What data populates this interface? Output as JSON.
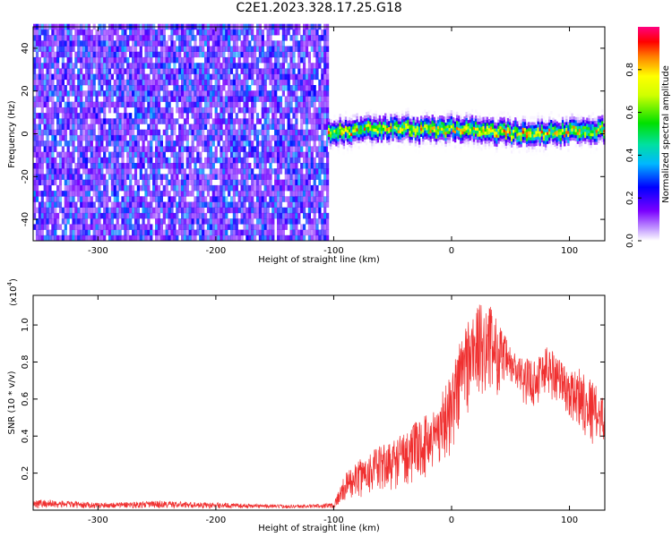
{
  "title": "C2E1.2023.328.17.25.G18",
  "chart_data": [
    {
      "type": "heatmap",
      "xlabel": "Height of straight line (km)",
      "ylabel": "Frequency (Hz)",
      "xlim": [
        -355,
        130
      ],
      "ylim": [
        -50,
        50
      ],
      "xticks": [
        -300,
        -200,
        -100,
        0,
        100
      ],
      "xtick_labels": [
        "-300",
        "-200",
        "-100",
        "0",
        "100"
      ],
      "yticks": [
        -40,
        -20,
        0,
        20,
        40
      ],
      "ytick_labels": [
        "-40",
        "-20",
        "0",
        "20",
        "40"
      ],
      "colorbar": {
        "label": "Normalized spectral amplitude",
        "range": [
          0,
          1
        ],
        "ticks": [
          0.0,
          0.2,
          0.4,
          0.6,
          0.8
        ],
        "tick_labels": [
          "0.0",
          "0.2",
          "0.4",
          "0.6",
          "0.8"
        ],
        "colormap": "rainbow"
      },
      "regions": [
        {
          "x": [
            -355,
            -105
          ],
          "description_values": {
            "freq_range": [
              -50,
              50
            ],
            "amplitude_range": [
              0.1,
              0.35
            ]
          }
        },
        {
          "x": [
            -105,
            130
          ],
          "description_values": {
            "center_freq": [
              [
                -105,
                0
              ],
              [
                -50,
                2
              ],
              [
                -20,
                1
              ],
              [
                0,
                2
              ],
              [
                40,
                0
              ],
              [
                80,
                0
              ],
              [
                130,
                1
              ]
            ],
            "peak_amplitude": [
              0.4,
              0.95
            ]
          }
        }
      ],
      "grid": false
    },
    {
      "type": "line",
      "xlabel": "Height of straight line (km)",
      "ylabel": "SNR (10 * v/v)",
      "scale_label": "(x10",
      "scale_exp": "4",
      "scale_close": ")",
      "xlim": [
        -355,
        130
      ],
      "ylim": [
        0,
        1.16
      ],
      "xticks": [
        -300,
        -200,
        -100,
        0,
        100
      ],
      "xtick_labels": [
        "-300",
        "-200",
        "-100",
        "0",
        "100"
      ],
      "yticks": [
        0.2,
        0.4,
        0.6,
        0.8,
        1.0
      ],
      "ytick_labels": [
        "0.2",
        "0.4",
        "0.6",
        "0.8",
        "1.0"
      ],
      "series": [
        {
          "color": "#f03030",
          "x": [
            -355,
            -300,
            -250,
            -200,
            -150,
            -120,
            -100,
            -90,
            -70,
            -50,
            -30,
            -15,
            0,
            10,
            20,
            30,
            40,
            50,
            60,
            70,
            80,
            90,
            100,
            110,
            120,
            130
          ],
          "lower": [
            0.01,
            0.01,
            0.01,
            0.01,
            0.01,
            0.01,
            0.01,
            0.05,
            0.08,
            0.1,
            0.15,
            0.2,
            0.3,
            0.45,
            0.58,
            0.62,
            0.62,
            0.66,
            0.58,
            0.55,
            0.6,
            0.58,
            0.5,
            0.42,
            0.35,
            0.38
          ],
          "upper": [
            0.06,
            0.04,
            0.05,
            0.04,
            0.03,
            0.03,
            0.04,
            0.2,
            0.32,
            0.38,
            0.48,
            0.55,
            0.75,
            1.02,
            1.1,
            1.14,
            1.02,
            0.88,
            0.82,
            0.82,
            0.9,
            0.85,
            0.74,
            0.78,
            0.7,
            0.6
          ]
        }
      ],
      "grid": false
    }
  ]
}
